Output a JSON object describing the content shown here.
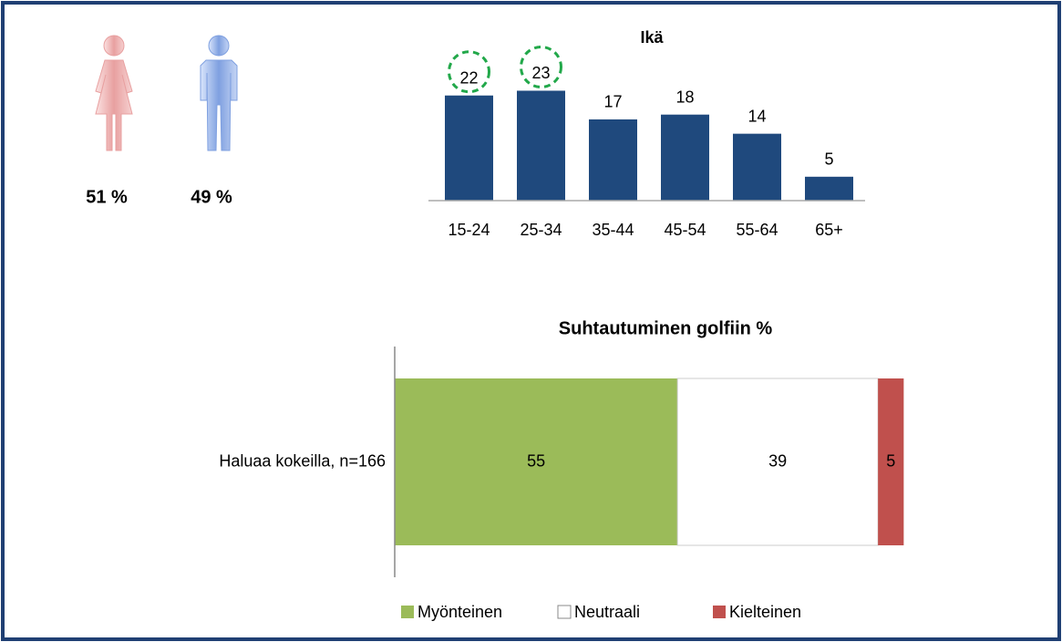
{
  "chart_data": [
    {
      "type": "pictogram",
      "values": [
        51,
        49
      ],
      "value_labels": [
        "51 %",
        "49 %"
      ],
      "colors": [
        "#e8a0a0",
        "#7fa0e0"
      ]
    },
    {
      "type": "bar",
      "title": "Ikä",
      "categories": [
        "15-24",
        "25-34",
        "35-44",
        "45-54",
        "55-64",
        "65+"
      ],
      "values": [
        22,
        23,
        17,
        18,
        14,
        5
      ],
      "color": "#1f497d",
      "ylim": [
        0,
        25
      ],
      "highlighted": [
        0,
        1
      ],
      "highlight_color": "#22a84a"
    },
    {
      "type": "stacked_hbar",
      "title": "Suhtautuminen golfiin %",
      "categories": [
        "Haluaa kokeilla, n=166"
      ],
      "xlim": [
        0,
        100
      ],
      "legend": "bottom",
      "series": [
        {
          "name": "Myönteinen",
          "color": "#9bbb59",
          "values": [
            55
          ]
        },
        {
          "name": "Neutraali",
          "color": "#ffffff",
          "values": [
            39
          ]
        },
        {
          "name": "Kielteinen",
          "color": "#c0504d",
          "values": [
            5
          ]
        }
      ]
    }
  ]
}
